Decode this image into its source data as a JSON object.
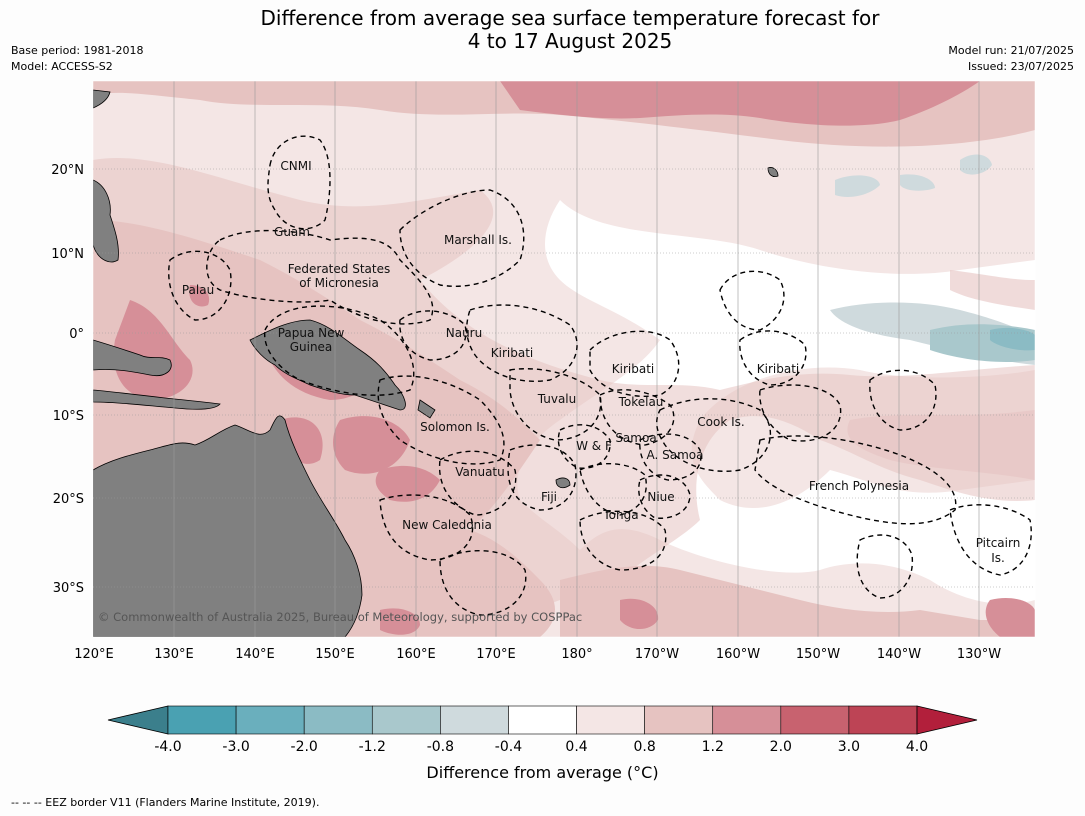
{
  "title_line1": "Difference from average sea surface temperature forecast for",
  "title_line2": "4 to 17 August 2025",
  "base_period": "Base period: 1981-2018",
  "model": "Model: ACCESS-S2",
  "model_run": "Model run: 21/07/2025",
  "issued": "Issued: 23/07/2025",
  "copyright": "© Commonwealth of Australia 2025, Bureau of Meteorology, supported by COSPPac",
  "footnote": "--  --  -- EEZ border V11 (Flanders Marine Institute, 2019).",
  "colorbar": {
    "label": "Difference from average (°C)",
    "ticks": [
      "-4.0",
      "-3.0",
      "-2.0",
      "-1.2",
      "-0.8",
      "-0.4",
      "0.4",
      "0.8",
      "1.2",
      "2.0",
      "3.0",
      "4.0"
    ],
    "colors": [
      "#3b7f8c",
      "#4aa1b2",
      "#6aafbd",
      "#8bbbc4",
      "#a9c8cc",
      "#cfdadd",
      "#ffffff",
      "#f4e6e5",
      "#e6c3c1",
      "#d68f98",
      "#c8626f",
      "#bd4455",
      "#b21f3b"
    ]
  },
  "axes": {
    "lon_labels": [
      "120°E",
      "130°E",
      "140°E",
      "150°E",
      "160°E",
      "170°E",
      "180°",
      "170°W",
      "160°W",
      "150°W",
      "140°W",
      "130°W"
    ],
    "lat_labels": [
      "20°N",
      "10°N",
      "0°",
      "10°S",
      "20°S",
      "30°S"
    ]
  },
  "places": [
    "CNMI",
    "Guam",
    "Marshall Is.",
    "Federated States",
    "of Micronesia",
    "Palau",
    "Papua New",
    "Guinea",
    "Nauru",
    "Kiribati",
    "Kiribati",
    "Kiribati",
    "Tuvalu",
    "Tokelau",
    "Solomon Is.",
    "W & F",
    "Samoa",
    "A. Samoa",
    "Cook Is.",
    "Vanuatu",
    "Fiji",
    "Niue",
    "French Polynesia",
    "Tonga",
    "New Caledonia",
    "Pitcairn",
    "Is."
  ]
}
